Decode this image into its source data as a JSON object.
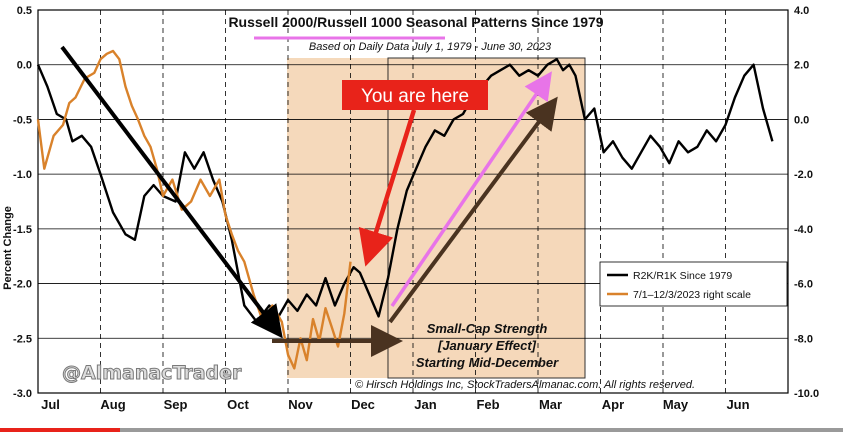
{
  "chart_data": {
    "type": "line",
    "title": "Russell 2000/Russell 1000 Seasonal Patterns Since 1979",
    "subtitle": "Based on Daily Data July 1, 1979 - June 30, 2023",
    "ylabel": "Percent Change",
    "ylim": [
      -3.0,
      0.5
    ],
    "y2lim": [
      -10.0,
      4.0
    ],
    "y_ticks": [
      "0.5",
      "0.0",
      "-0.5",
      "-1.0",
      "-1.5",
      "-2.0",
      "-2.5",
      "-3.0"
    ],
    "y2_ticks": [
      "4.0",
      "2.0",
      "0.0",
      "-2.0",
      "-4.0",
      "-6.0",
      "-8.0",
      "-10.0"
    ],
    "months": [
      "Jul",
      "Aug",
      "Sep",
      "Oct",
      "Nov",
      "Dec",
      "Jan",
      "Feb",
      "Mar",
      "Apr",
      "May",
      "Jun"
    ],
    "series": [
      {
        "name": "R2K/R1K Since 1979",
        "color": "#000000",
        "axis": "left",
        "x": [
          0,
          0.15,
          0.3,
          0.45,
          0.55,
          0.7,
          0.85,
          1.0,
          1.2,
          1.4,
          1.55,
          1.7,
          1.85,
          2.0,
          2.2,
          2.35,
          2.5,
          2.65,
          2.8,
          2.95,
          3.1,
          3.3,
          3.5,
          3.7,
          3.85,
          4.0,
          4.15,
          4.3,
          4.45,
          4.6,
          4.75,
          4.9,
          5.05,
          5.15,
          5.3,
          5.45,
          5.6,
          5.75,
          5.9,
          6.05,
          6.2,
          6.35,
          6.5,
          6.65,
          6.8,
          6.95,
          7.1,
          7.25,
          7.4,
          7.55,
          7.7,
          7.85,
          8.0,
          8.15,
          8.3,
          8.4,
          8.5,
          8.6,
          8.75,
          8.9,
          9.05,
          9.2,
          9.35,
          9.5,
          9.65,
          9.8,
          9.95,
          10.1,
          10.25,
          10.4,
          10.55,
          10.7,
          10.85,
          11.0,
          11.15,
          11.3,
          11.45,
          11.6,
          11.75
        ],
        "values": [
          0.0,
          -0.2,
          -0.45,
          -0.5,
          -0.7,
          -0.65,
          -0.75,
          -1.0,
          -1.35,
          -1.55,
          -1.6,
          -1.2,
          -1.1,
          -1.2,
          -1.25,
          -0.8,
          -0.95,
          -0.8,
          -1.05,
          -1.25,
          -1.6,
          -2.2,
          -2.35,
          -2.2,
          -2.3,
          -2.15,
          -2.25,
          -2.1,
          -2.2,
          -1.95,
          -2.2,
          -2.0,
          -1.85,
          -1.9,
          -2.1,
          -2.3,
          -1.95,
          -1.5,
          -1.15,
          -0.95,
          -0.75,
          -0.6,
          -0.65,
          -0.5,
          -0.45,
          -0.3,
          -0.2,
          -0.1,
          -0.05,
          0.0,
          -0.1,
          -0.05,
          -0.1,
          0.0,
          0.05,
          -0.05,
          0.0,
          -0.1,
          -0.5,
          -0.4,
          -0.8,
          -0.7,
          -0.85,
          -0.95,
          -0.8,
          -0.65,
          -0.75,
          -0.9,
          -0.7,
          -0.8,
          -0.75,
          -0.6,
          -0.7,
          -0.55,
          -0.3,
          -0.1,
          0.0,
          -0.4,
          -0.7
        ],
        "y2": [],
        "x2": []
      },
      {
        "name": "7/1–12/3/2023 right scale",
        "color": "#d9822b",
        "axis": "right",
        "x": [
          0,
          0.1,
          0.25,
          0.4,
          0.5,
          0.6,
          0.75,
          0.9,
          1.0,
          1.1,
          1.2,
          1.3,
          1.4,
          1.5,
          1.6,
          1.7,
          1.8,
          1.9,
          2.0,
          2.15,
          2.3,
          2.45,
          2.6,
          2.75,
          2.9,
          3.0,
          3.1,
          3.2,
          3.3,
          3.45,
          3.6,
          3.75,
          3.9,
          4.0,
          4.1,
          4.2,
          4.3,
          4.4,
          4.5,
          4.6,
          4.7,
          4.8,
          4.9,
          5.0
        ],
        "values": [
          0.0,
          -1.8,
          -0.6,
          -0.2,
          0.6,
          0.8,
          1.5,
          1.7,
          2.2,
          2.4,
          2.5,
          2.2,
          1.2,
          0.5,
          0.0,
          -0.6,
          -1.0,
          -1.8,
          -2.8,
          -2.2,
          -3.3,
          -3.0,
          -2.2,
          -2.8,
          -2.2,
          -3.5,
          -4.2,
          -4.8,
          -5.2,
          -6.4,
          -7.4,
          -6.8,
          -7.4,
          -8.6,
          -9.1,
          -8.0,
          -8.8,
          -7.3,
          -8.1,
          -6.9,
          -7.6,
          -8.3,
          -7.1,
          -5.2
        ],
        "y2": [],
        "x2": []
      }
    ],
    "annotations": {
      "callout": "You are here",
      "strength": [
        "Small-Cap Strength",
        "[January Effect]",
        "Starting Mid-December"
      ],
      "watermark": "@AlmanacTrader",
      "copyright": "© Hirsch Holdings Inc, StockTradersAlmanac.com. All rights reserved."
    },
    "highlights": {
      "fill_color": "#f3cfaa",
      "pink": "#e874e8",
      "red": "#e8231a"
    },
    "legend_position": "right"
  }
}
